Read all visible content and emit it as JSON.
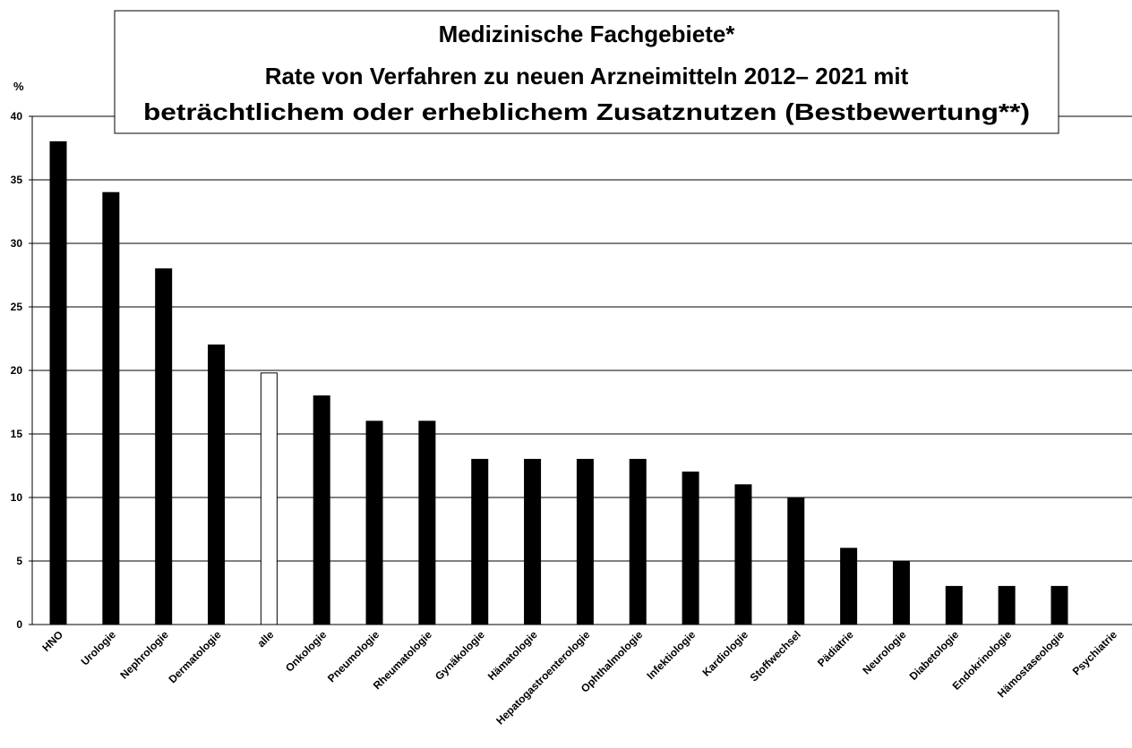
{
  "chart_data": {
    "type": "bar",
    "title": "Medizinische Fachgebiete*",
    "subtitle_lines": [
      "Rate von Verfahren zu neuen Arzneimitteln 2012– 2021 mit",
      "beträchtlichem oder erheblichem Zusatznutzen (Bestbewertung**)"
    ],
    "ylabel": "%",
    "xlabel": "",
    "ylim": [
      0,
      40
    ],
    "yticks": [
      0,
      5,
      10,
      15,
      20,
      25,
      30,
      35,
      40
    ],
    "grid": true,
    "categories": [
      "HNO",
      "Urologie",
      "Nephrologie",
      "Dermatologie",
      "alle",
      "Onkologie",
      "Pneumologie",
      "Rheumatologie",
      "Gynäkologie",
      "Hämatologie",
      "Hepatogastroenterologie",
      "Ophthalmologie",
      "Infektiologie",
      "Kardiologie",
      "Stoffwechsel",
      "Pädiatrie",
      "Neurologie",
      "Diabetologie",
      "Endokrinologie",
      "Hämostaseologie",
      "Psychiatrie"
    ],
    "values": [
      38,
      34,
      28,
      22,
      19.8,
      18,
      16,
      16,
      13,
      13,
      13,
      13,
      12,
      11,
      10,
      6,
      5,
      3,
      3,
      3,
      0
    ],
    "highlight_category": "alle",
    "colors": {
      "bar": "#000000",
      "highlight_bar": "#ffffff",
      "bar_stroke": "#000000",
      "grid": "#000000"
    }
  }
}
